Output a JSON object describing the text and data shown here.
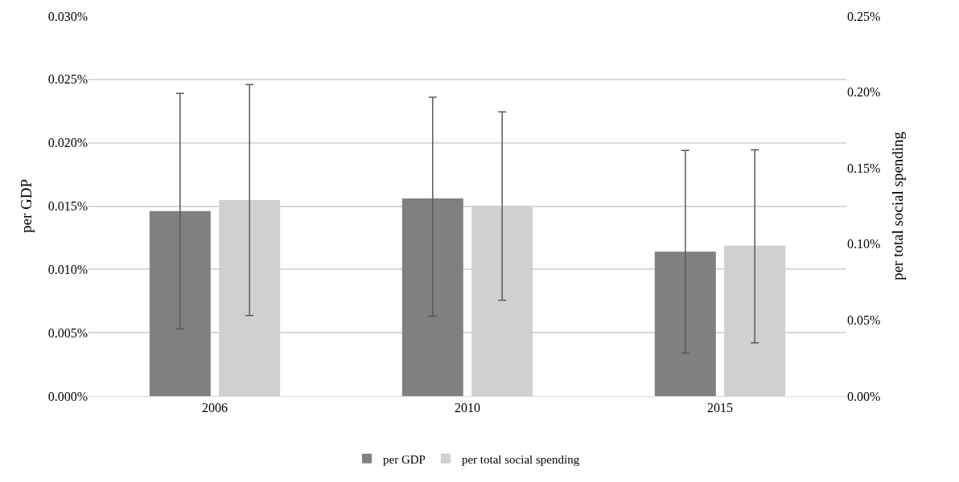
{
  "chart_data": {
    "type": "bar",
    "categories": [
      "2006",
      "2010",
      "2015"
    ],
    "ylabel": "per GDP",
    "y2label": "per total social spending",
    "series": [
      {
        "name": "per GDP",
        "color": "#808080",
        "values": [
          0.0146,
          0.0156,
          0.0114
        ],
        "errors": [
          [
            0.0053,
            0.0239
          ],
          [
            0.0063,
            0.0236
          ],
          [
            0.0034,
            0.0194
          ]
        ]
      },
      {
        "name": "per total social spending",
        "color": "#d0d0d0",
        "axis": "y2",
        "values": [
          0.129,
          0.125,
          0.099
        ],
        "errors": [
          [
            0.053,
            0.205
          ],
          [
            0.063,
            0.187
          ],
          [
            0.035,
            0.162
          ]
        ]
      }
    ],
    "ylim": [
      0,
      0.03
    ],
    "yticks": [
      {
        "value": 0,
        "label": "0.000%"
      },
      {
        "value": 0.005,
        "label": "0.005%"
      },
      {
        "value": 0.01,
        "label": "0.010%"
      },
      {
        "value": 0.015,
        "label": "0.015%"
      },
      {
        "value": 0.02,
        "label": "0.020%"
      },
      {
        "value": 0.025,
        "label": "0.025%"
      },
      {
        "value": 0.03,
        "label": "0.030%"
      }
    ],
    "y2lim": [
      0,
      0.25
    ],
    "y2ticks": [
      {
        "value": 0,
        "label": "0.00%"
      },
      {
        "value": 0.05,
        "label": "0.05%"
      },
      {
        "value": 0.1,
        "label": "0.10%"
      },
      {
        "value": 0.15,
        "label": "0.15%"
      },
      {
        "value": 0.2,
        "label": "0.20%"
      },
      {
        "value": 0.25,
        "label": "0.25%"
      }
    ],
    "grid": "y",
    "legend": "bottom"
  }
}
